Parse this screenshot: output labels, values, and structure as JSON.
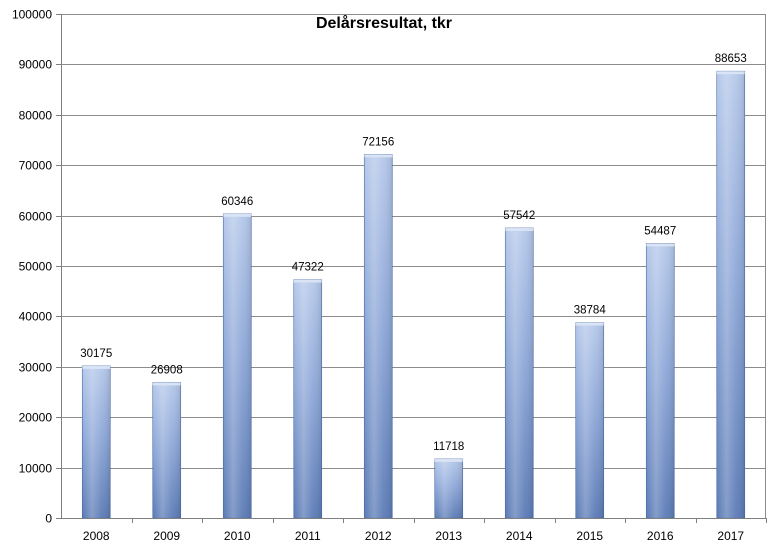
{
  "chart_data": {
    "type": "bar",
    "title": "Delårsresultat, tkr",
    "xlabel": "",
    "ylabel": "",
    "categories": [
      "2008",
      "2009",
      "2010",
      "2011",
      "2012",
      "2013",
      "2014",
      "2015",
      "2016",
      "2017"
    ],
    "values": [
      30175,
      26908,
      60346,
      47322,
      72156,
      11718,
      57542,
      38784,
      54487,
      88653
    ],
    "ylim": [
      0,
      100000
    ],
    "yticks": [
      "0",
      "10000",
      "20000",
      "30000",
      "40000",
      "50000",
      "60000",
      "70000",
      "80000",
      "90000",
      "100000"
    ],
    "grid": true,
    "legend": "none",
    "colors": {
      "bar_top": "#b5c8ea",
      "bar_mid": "#8ea8d8",
      "bar_bottom": "#5b7bb6",
      "gridline": "#8c8c8c",
      "axis": "#808080"
    }
  }
}
